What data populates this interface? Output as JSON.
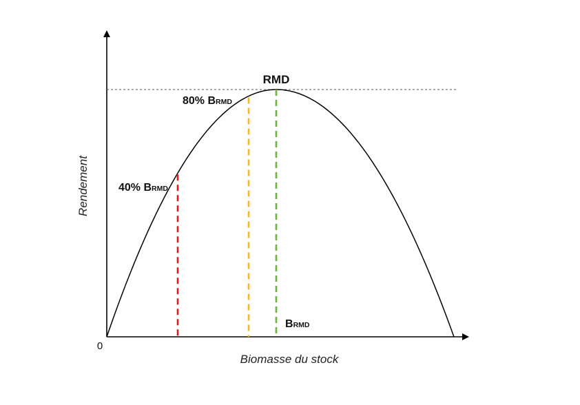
{
  "diagram": {
    "peak_label": "RMD",
    "origin_label": "0",
    "x_axis_label": "Biomasse du stock",
    "y_axis_label": "Rendement",
    "markers": [
      {
        "id": "red",
        "prefix": "40% ",
        "main": "B",
        "sub": "RMD",
        "fraction": 0.4,
        "color": "#e8191c"
      },
      {
        "id": "yellow",
        "prefix": "80% ",
        "main": "B",
        "sub": "RMD",
        "fraction": 0.8,
        "color": "#f2b825"
      },
      {
        "id": "green",
        "prefix": "",
        "main": "B",
        "sub": "RMD",
        "fraction": 1.0,
        "color": "#70ad47"
      }
    ]
  }
}
